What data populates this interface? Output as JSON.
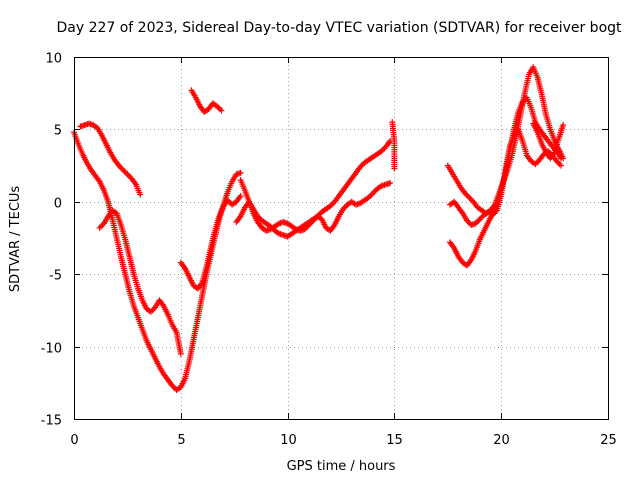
{
  "chart_data": {
    "type": "scatter",
    "title": "Day 227 of 2023, Sidereal Day-to-day VTEC variation (SDTVAR) for receiver bogt",
    "xlabel": "GPS time / hours",
    "ylabel": "SDTVAR / TECUs",
    "xlim": [
      0,
      25
    ],
    "ylim": [
      -15,
      10
    ],
    "xticks": [
      "0",
      "5",
      "10",
      "15",
      "20",
      "25"
    ],
    "yticks": [
      "-15",
      "-10",
      "-5",
      "0",
      "5",
      "10"
    ],
    "xtick_values": [
      0,
      5,
      10,
      15,
      20,
      25
    ],
    "ytick_values": [
      -15,
      -10,
      -5,
      0,
      5,
      10
    ],
    "grid": true,
    "marker": "+",
    "color": "#ff0000",
    "series": [
      {
        "x": [
          0.0,
          0.2,
          0.4,
          0.6,
          0.8,
          1.0,
          1.2,
          1.4,
          1.6,
          1.8,
          2.0,
          2.2,
          2.4,
          2.6,
          2.8,
          3.0,
          3.2,
          3.4,
          3.6,
          3.8,
          4.0,
          4.2,
          4.4,
          4.6,
          4.8,
          5.0,
          5.2,
          5.4,
          5.6,
          5.8,
          6.0,
          6.2,
          6.4,
          6.6,
          6.8,
          7.0,
          7.2,
          7.4,
          7.6,
          7.8
        ],
        "y": [
          4.8,
          4.0,
          3.3,
          2.7,
          2.2,
          1.8,
          1.4,
          0.8,
          0.0,
          -1.2,
          -2.5,
          -3.8,
          -5.0,
          -6.2,
          -7.2,
          -8.0,
          -8.8,
          -9.6,
          -10.2,
          -10.8,
          -11.4,
          -11.9,
          -12.3,
          -12.7,
          -13.0,
          -12.8,
          -12.2,
          -11.0,
          -9.5,
          -8.0,
          -6.5,
          -5.0,
          -3.7,
          -2.4,
          -1.2,
          -0.2,
          0.7,
          1.4,
          1.9,
          2.0
        ]
      },
      {
        "x": [
          0.3,
          0.5,
          0.7,
          0.9,
          1.1,
          1.3,
          1.5,
          1.7,
          1.9,
          2.1,
          2.3,
          2.5,
          2.7,
          2.9,
          3.1
        ],
        "y": [
          5.2,
          5.3,
          5.4,
          5.3,
          5.1,
          4.6,
          4.0,
          3.4,
          2.9,
          2.5,
          2.2,
          1.9,
          1.6,
          1.2,
          0.5
        ]
      },
      {
        "x": [
          1.2,
          1.4,
          1.6,
          1.8,
          2.0,
          2.2,
          2.4,
          2.6,
          2.8,
          3.0,
          3.2,
          3.4,
          3.6,
          3.8,
          4.0,
          4.2,
          4.4,
          4.6,
          4.8,
          5.0
        ],
        "y": [
          -1.8,
          -1.5,
          -1.0,
          -0.6,
          -0.8,
          -1.6,
          -2.6,
          -3.8,
          -5.0,
          -6.0,
          -6.8,
          -7.4,
          -7.6,
          -7.3,
          -6.8,
          -7.2,
          -7.8,
          -8.5,
          -9.0,
          -10.5
        ]
      },
      {
        "x": [
          5.0,
          5.2,
          5.4,
          5.6,
          5.8,
          6.0,
          6.2,
          6.4,
          6.6,
          6.8,
          7.0,
          7.2,
          7.4,
          7.6,
          7.8
        ],
        "y": [
          -4.2,
          -4.6,
          -5.2,
          -5.8,
          -6.0,
          -5.6,
          -4.5,
          -3.2,
          -2.0,
          -1.0,
          -0.3,
          0.1,
          -0.2,
          0.0,
          0.4
        ]
      },
      {
        "x": [
          5.5,
          5.7,
          5.9,
          6.1,
          6.3,
          6.5,
          6.7,
          6.9
        ],
        "y": [
          7.7,
          7.2,
          6.6,
          6.2,
          6.4,
          6.8,
          6.6,
          6.3
        ]
      },
      {
        "x": [
          7.8,
          8.0,
          8.2,
          8.4,
          8.6,
          8.8,
          9.0,
          9.2,
          9.4,
          9.6,
          9.8,
          10.0,
          10.2,
          10.4,
          10.6,
          10.8,
          11.0,
          11.2,
          11.4,
          11.6,
          11.8,
          12.0,
          12.2,
          12.4,
          12.6,
          12.8,
          13.0,
          13.2,
          13.4,
          13.6,
          13.8,
          14.0,
          14.2,
          14.4,
          14.6,
          14.8
        ],
        "y": [
          1.5,
          0.8,
          0.0,
          -0.8,
          -1.4,
          -1.8,
          -2.0,
          -1.9,
          -1.7,
          -1.5,
          -1.4,
          -1.5,
          -1.7,
          -1.9,
          -2.0,
          -1.9,
          -1.6,
          -1.3,
          -1.0,
          -0.7,
          -0.5,
          -0.3,
          0.0,
          0.4,
          0.8,
          1.2,
          1.6,
          2.0,
          2.4,
          2.7,
          2.9,
          3.1,
          3.3,
          3.5,
          3.8,
          4.2
        ]
      },
      {
        "x": [
          7.6,
          7.8,
          8.0,
          8.2,
          8.4,
          8.6,
          8.8,
          9.0,
          9.2,
          9.4,
          9.6,
          9.8,
          10.0,
          10.2,
          10.4,
          10.6,
          10.8,
          11.0,
          11.2,
          11.4,
          11.6,
          11.8,
          12.0,
          12.2,
          12.4,
          12.6,
          12.8,
          13.0,
          13.2,
          13.4,
          13.6,
          13.8,
          14.0,
          14.2,
          14.4,
          14.6,
          14.8
        ],
        "y": [
          -1.4,
          -1.0,
          -0.4,
          0.0,
          -0.5,
          -1.0,
          -1.3,
          -1.5,
          -1.7,
          -2.0,
          -2.2,
          -2.3,
          -2.4,
          -2.2,
          -2.0,
          -1.8,
          -1.6,
          -1.4,
          -1.2,
          -1.0,
          -1.2,
          -1.8,
          -2.0,
          -1.6,
          -1.0,
          -0.5,
          -0.2,
          0.0,
          -0.2,
          -0.1,
          0.1,
          0.3,
          0.6,
          0.9,
          1.1,
          1.2,
          1.3
        ]
      },
      {
        "x": [
          14.9,
          15.0,
          15.0,
          15.0
        ],
        "y": [
          5.5,
          4.2,
          3.0,
          2.3
        ]
      },
      {
        "x": [
          17.5,
          17.7,
          17.9,
          18.1,
          18.3,
          18.5,
          18.7,
          18.9,
          19.1,
          19.3,
          19.5,
          19.7,
          19.9,
          20.1,
          20.3,
          20.5,
          20.7,
          20.9,
          21.1,
          21.3,
          21.5,
          21.7,
          21.9,
          22.1,
          22.3,
          22.5,
          22.7,
          22.9
        ],
        "y": [
          2.5,
          2.0,
          1.5,
          1.0,
          0.6,
          0.3,
          0.0,
          -0.4,
          -0.6,
          -0.8,
          -0.6,
          -0.2,
          0.6,
          1.4,
          2.2,
          3.2,
          4.5,
          6.0,
          7.5,
          8.8,
          9.3,
          8.6,
          7.4,
          6.0,
          5.0,
          4.2,
          3.6,
          3.0
        ]
      },
      {
        "x": [
          17.6,
          17.8,
          18.0,
          18.2,
          18.4,
          18.6,
          18.8,
          19.0,
          19.2,
          19.4,
          19.6,
          19.8,
          20.0,
          20.2,
          20.4,
          20.6,
          20.8,
          21.0,
          21.2,
          21.4,
          21.6,
          21.8,
          22.0,
          22.2,
          22.4,
          22.6,
          22.8
        ],
        "y": [
          -2.8,
          -3.2,
          -3.8,
          -4.2,
          -4.4,
          -4.0,
          -3.4,
          -2.6,
          -2.0,
          -1.4,
          -0.8,
          -0.2,
          0.8,
          2.0,
          3.5,
          5.0,
          6.2,
          6.9,
          7.2,
          6.5,
          5.5,
          5.0,
          4.6,
          4.2,
          3.8,
          3.5,
          3.0
        ]
      },
      {
        "x": [
          17.6,
          17.8,
          18.0,
          18.2,
          18.4,
          18.6,
          18.8,
          19.0,
          19.2,
          19.4,
          19.6,
          19.8,
          20.0,
          20.2,
          20.4,
          20.6,
          20.8,
          21.0,
          21.2,
          21.4,
          21.6,
          21.8,
          22.0,
          22.2,
          22.4,
          22.6,
          22.8
        ],
        "y": [
          -0.2,
          0.0,
          -0.4,
          -0.8,
          -1.3,
          -1.6,
          -1.5,
          -1.2,
          -0.9,
          -0.7,
          -0.9,
          -0.6,
          0.5,
          2.2,
          3.8,
          4.6,
          5.0,
          4.2,
          3.2,
          2.8,
          2.6,
          2.9,
          3.3,
          3.5,
          3.2,
          2.8,
          2.5
        ]
      },
      {
        "x": [
          21.5,
          21.7,
          21.9,
          22.1,
          22.3,
          22.5,
          22.7,
          22.9
        ],
        "y": [
          5.4,
          4.8,
          4.0,
          3.4,
          3.0,
          3.4,
          4.4,
          5.3
        ]
      }
    ]
  }
}
